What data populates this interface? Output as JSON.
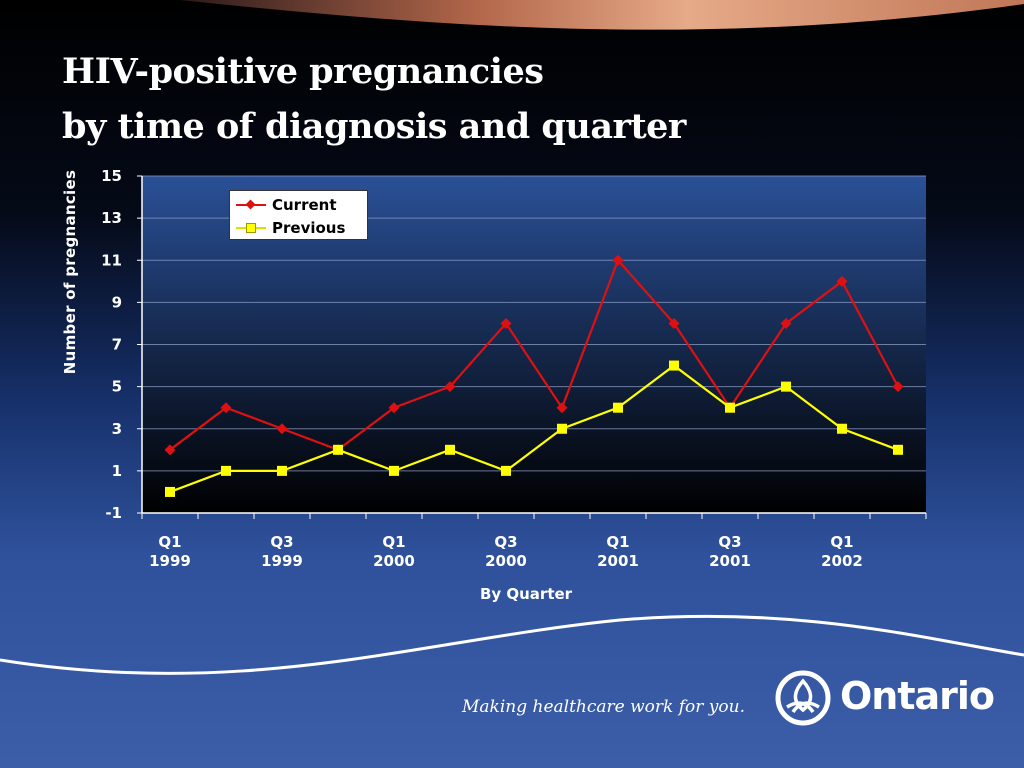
{
  "title": {
    "line1": "HIV-positive pregnancies",
    "line2": "by time of diagnosis and quarter"
  },
  "footer": {
    "tagline": "Making healthcare work for you.",
    "logo_text": "Ontario"
  },
  "colors": {
    "current": "#dd1111",
    "previous": "#ffff00",
    "plot_bg_top": "#2a5097",
    "plot_bg_bottom": "#000000"
  },
  "chart_data": {
    "type": "line",
    "xlabel": "By Quarter",
    "ylabel": "Number of pregnancies",
    "ylim": [
      -1,
      15
    ],
    "yticks": [
      "-1",
      "1",
      "3",
      "5",
      "7",
      "9",
      "11",
      "13",
      "15"
    ],
    "x_tick_labels": [
      {
        "q": "Q1",
        "y": "1999"
      },
      {
        "q": "",
        "y": ""
      },
      {
        "q": "Q3",
        "y": "1999"
      },
      {
        "q": "",
        "y": ""
      },
      {
        "q": "Q1",
        "y": "2000"
      },
      {
        "q": "",
        "y": ""
      },
      {
        "q": "Q3",
        "y": "2000"
      },
      {
        "q": "",
        "y": ""
      },
      {
        "q": "Q1",
        "y": "2001"
      },
      {
        "q": "",
        "y": ""
      },
      {
        "q": "Q3",
        "y": "2001"
      },
      {
        "q": "",
        "y": ""
      },
      {
        "q": "Q1",
        "y": "2002"
      },
      {
        "q": "",
        "y": ""
      }
    ],
    "categories": [
      "Q1 1999",
      "Q2 1999",
      "Q3 1999",
      "Q4 1999",
      "Q1 2000",
      "Q2 2000",
      "Q3 2000",
      "Q4 2000",
      "Q1 2001",
      "Q2 2001",
      "Q3 2001",
      "Q4 2001",
      "Q1 2002",
      "Q2 2002"
    ],
    "series": [
      {
        "name": "Current",
        "values": [
          2,
          4,
          3,
          2,
          4,
          5,
          8,
          4,
          11,
          8,
          4,
          8,
          10,
          5
        ]
      },
      {
        "name": "Previous",
        "values": [
          0,
          1,
          1,
          2,
          1,
          2,
          1,
          3,
          4,
          6,
          4,
          5,
          3,
          2
        ]
      }
    ],
    "legend": "top-left",
    "grid": true
  }
}
